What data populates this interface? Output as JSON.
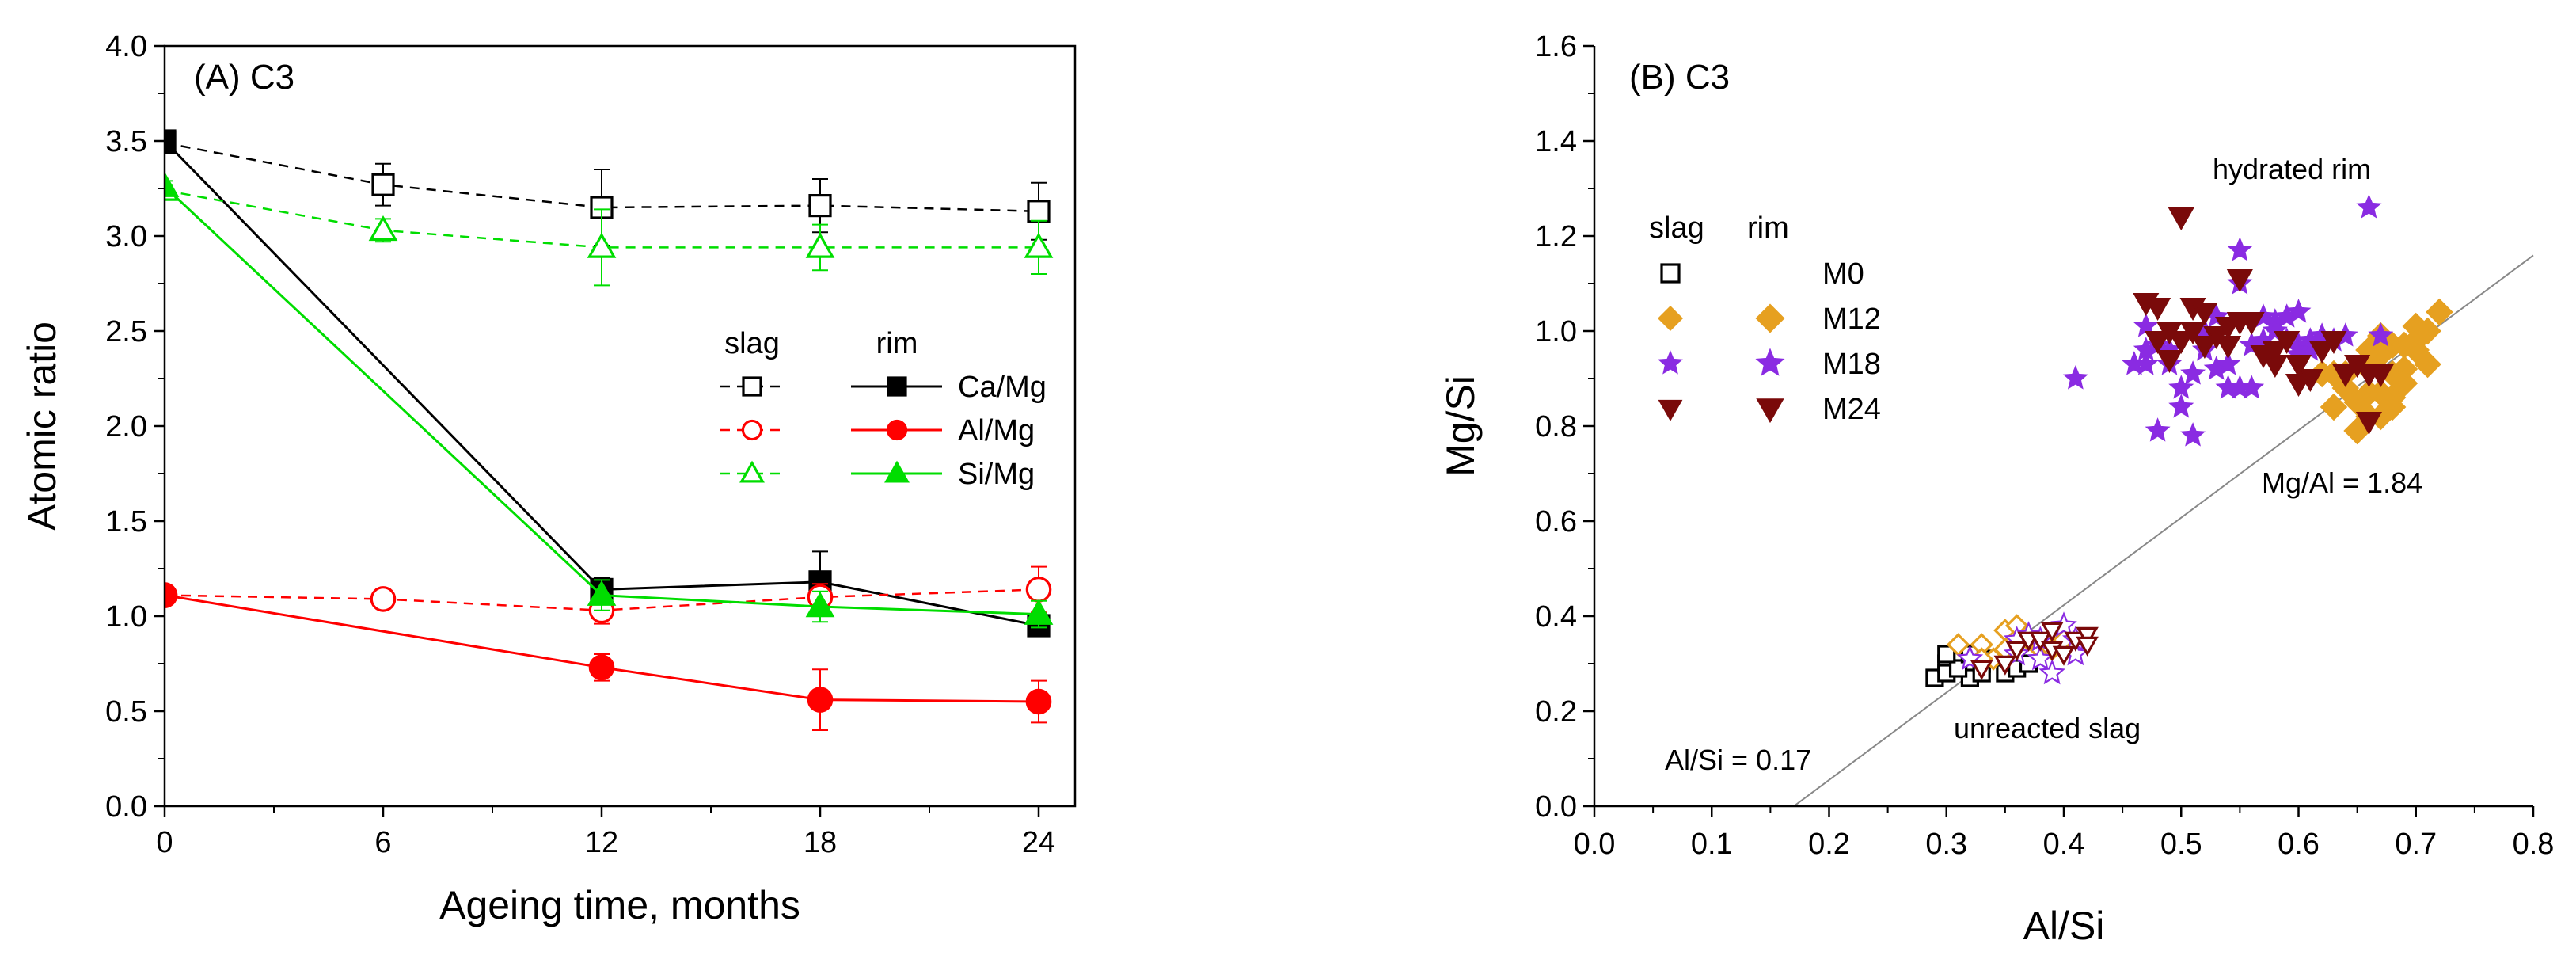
{
  "colors": {
    "ca": "#000000",
    "al": "#ff0000",
    "si": "#00dd00",
    "m0": "#000000",
    "m12": "#e6a020",
    "m18": "#8a2be2",
    "m24": "#7a0a0a",
    "gridline": "#888888"
  },
  "chart_data": [
    {
      "type": "line",
      "panel": "(A) C3",
      "xlabel": "Ageing time, months",
      "ylabel": "Atomic ratio",
      "xlim": [
        0,
        25
      ],
      "ylim": [
        0,
        4.0
      ],
      "xticks": [
        0,
        6,
        12,
        18,
        24
      ],
      "yticks": [
        "0.0",
        "0.5",
        "1.0",
        "1.5",
        "2.0",
        "2.5",
        "3.0",
        "3.5",
        "4.0"
      ],
      "legend": {
        "position": "right",
        "col_slag": "slag",
        "col_rim": "rim"
      },
      "series": [
        {
          "name": "Ca/Mg",
          "group": "slag",
          "style": "dashed",
          "marker": "open-square",
          "color_key": "ca",
          "points": [
            {
              "x": 0,
              "y": 3.49,
              "err": 0.03
            },
            {
              "x": 6,
              "y": 3.27,
              "err": 0.11
            },
            {
              "x": 12,
              "y": 3.15,
              "err": 0.2
            },
            {
              "x": 18,
              "y": 3.16,
              "err": 0.14
            },
            {
              "x": 24,
              "y": 3.13,
              "err": 0.15
            }
          ]
        },
        {
          "name": "Ca/Mg",
          "group": "rim",
          "style": "solid",
          "marker": "filled-square",
          "color_key": "ca",
          "points": [
            {
              "x": 0,
              "y": 3.5,
              "err": 0.03
            },
            {
              "x": 12,
              "y": 1.14,
              "err": 0.06
            },
            {
              "x": 18,
              "y": 1.18,
              "err": 0.16
            },
            {
              "x": 24,
              "y": 0.95,
              "err": 0.04
            }
          ]
        },
        {
          "name": "Al/Mg",
          "group": "slag",
          "style": "dashed",
          "marker": "open-circle",
          "color_key": "al",
          "points": [
            {
              "x": 0,
              "y": 1.11,
              "err": 0.02
            },
            {
              "x": 6,
              "y": 1.09,
              "err": 0.05
            },
            {
              "x": 12,
              "y": 1.03,
              "err": 0.07
            },
            {
              "x": 18,
              "y": 1.1,
              "err": 0.07
            },
            {
              "x": 24,
              "y": 1.14,
              "err": 0.12
            }
          ]
        },
        {
          "name": "Al/Mg",
          "group": "rim",
          "style": "solid",
          "marker": "filled-circle",
          "color_key": "al",
          "points": [
            {
              "x": 0,
              "y": 1.11,
              "err": 0.02
            },
            {
              "x": 12,
              "y": 0.73,
              "err": 0.07
            },
            {
              "x": 18,
              "y": 0.56,
              "err": 0.16
            },
            {
              "x": 24,
              "y": 0.55,
              "err": 0.11
            }
          ]
        },
        {
          "name": "Si/Mg",
          "group": "slag",
          "style": "dashed",
          "marker": "open-triangle",
          "color_key": "si",
          "points": [
            {
              "x": 0,
              "y": 3.24,
              "err": 0.03
            },
            {
              "x": 6,
              "y": 3.03,
              "err": 0.06
            },
            {
              "x": 12,
              "y": 2.94,
              "err": 0.2
            },
            {
              "x": 18,
              "y": 2.94,
              "err": 0.12
            },
            {
              "x": 24,
              "y": 2.94,
              "err": 0.14
            }
          ]
        },
        {
          "name": "Si/Mg",
          "group": "rim",
          "style": "solid",
          "marker": "filled-triangle",
          "color_key": "si",
          "points": [
            {
              "x": 0,
              "y": 3.26,
              "err": 0.03
            },
            {
              "x": 12,
              "y": 1.11,
              "err": 0.08
            },
            {
              "x": 18,
              "y": 1.05,
              "err": 0.08
            },
            {
              "x": 24,
              "y": 1.01,
              "err": 0.07
            }
          ]
        }
      ]
    },
    {
      "type": "scatter",
      "panel": "(B) C3",
      "xlabel": "Al/Si",
      "ylabel": "Mg/Si",
      "xlim": [
        0,
        0.8
      ],
      "ylim": [
        0,
        1.6
      ],
      "xticks": [
        "0.0",
        "0.1",
        "0.2",
        "0.3",
        "0.4",
        "0.5",
        "0.6",
        "0.7",
        "0.8"
      ],
      "yticks": [
        "0.0",
        "0.2",
        "0.4",
        "0.6",
        "0.8",
        "1.0",
        "1.2",
        "1.4",
        "1.6"
      ],
      "legend": {
        "position": "top-left",
        "col_slag": "slag",
        "col_rim": "rim",
        "labels": [
          "M0",
          "M12",
          "M18",
          "M24"
        ]
      },
      "annotations": {
        "hydrated": "hydrated rim",
        "unreacted": "unreacted slag",
        "mgal": "Mg/Al = 1.84",
        "alsi": "Al/Si = 0.17"
      },
      "reference_line": {
        "x0": 0.17,
        "slope": 1.84
      },
      "series": [
        {
          "name": "M0",
          "group": "slag",
          "marker": "open-square",
          "color_key": "m0",
          "points": [
            [
              0.29,
              0.27
            ],
            [
              0.3,
              0.3
            ],
            [
              0.31,
              0.31
            ],
            [
              0.3,
              0.28
            ],
            [
              0.32,
              0.27
            ],
            [
              0.33,
              0.3
            ],
            [
              0.34,
              0.31
            ],
            [
              0.31,
              0.29
            ],
            [
              0.35,
              0.28
            ],
            [
              0.36,
              0.29
            ],
            [
              0.32,
              0.32
            ],
            [
              0.37,
              0.3
            ],
            [
              0.3,
              0.32
            ],
            [
              0.33,
              0.28
            ]
          ]
        },
        {
          "name": "M12",
          "group": "slag",
          "marker": "open-diamond",
          "color_key": "m12",
          "points": [
            [
              0.31,
              0.34
            ],
            [
              0.33,
              0.34
            ],
            [
              0.35,
              0.37
            ],
            [
              0.36,
              0.38
            ],
            [
              0.34,
              0.31
            ],
            [
              0.37,
              0.35
            ],
            [
              0.38,
              0.33
            ],
            [
              0.39,
              0.33
            ],
            [
              0.35,
              0.33
            ],
            [
              0.33,
              0.31
            ],
            [
              0.4,
              0.35
            ]
          ]
        },
        {
          "name": "M18",
          "group": "slag",
          "marker": "open-star",
          "color_key": "m18",
          "points": [
            [
              0.32,
              0.31
            ],
            [
              0.36,
              0.32
            ],
            [
              0.37,
              0.36
            ],
            [
              0.38,
              0.31
            ],
            [
              0.39,
              0.28
            ],
            [
              0.4,
              0.38
            ],
            [
              0.41,
              0.35
            ],
            [
              0.41,
              0.32
            ],
            [
              0.36,
              0.35
            ],
            [
              0.38,
              0.35
            ]
          ]
        },
        {
          "name": "M24",
          "group": "slag",
          "marker": "open-triangle-down",
          "color_key": "m24",
          "points": [
            [
              0.33,
              0.29
            ],
            [
              0.35,
              0.3
            ],
            [
              0.36,
              0.33
            ],
            [
              0.37,
              0.35
            ],
            [
              0.38,
              0.35
            ],
            [
              0.39,
              0.33
            ],
            [
              0.4,
              0.32
            ],
            [
              0.41,
              0.35
            ],
            [
              0.42,
              0.36
            ],
            [
              0.42,
              0.34
            ],
            [
              0.39,
              0.37
            ]
          ]
        },
        {
          "name": "M12",
          "group": "rim",
          "marker": "filled-diamond",
          "color_key": "m12",
          "points": [
            [
              0.62,
              0.91
            ],
            [
              0.63,
              0.84
            ],
            [
              0.64,
              0.88
            ],
            [
              0.65,
              0.79
            ],
            [
              0.66,
              0.92
            ],
            [
              0.67,
              0.95
            ],
            [
              0.68,
              0.97
            ],
            [
              0.69,
              0.92
            ],
            [
              0.7,
              0.98
            ],
            [
              0.71,
              1.0
            ],
            [
              0.72,
              1.04
            ],
            [
              0.67,
              0.87
            ],
            [
              0.66,
              0.82
            ],
            [
              0.64,
              0.91
            ],
            [
              0.68,
              0.86
            ],
            [
              0.69,
              0.97
            ],
            [
              0.7,
              0.96
            ],
            [
              0.71,
              0.93
            ],
            [
              0.65,
              0.85
            ],
            [
              0.67,
              0.99
            ],
            [
              0.68,
              0.91
            ],
            [
              0.63,
              0.91
            ],
            [
              0.67,
              0.82
            ],
            [
              0.66,
              0.96
            ],
            [
              0.69,
              0.89
            ],
            [
              0.7,
              1.01
            ],
            [
              0.66,
              0.87
            ],
            [
              0.68,
              0.84
            ]
          ]
        },
        {
          "name": "M18",
          "group": "rim",
          "marker": "filled-star",
          "color_key": "m18",
          "points": [
            [
              0.41,
              0.9
            ],
            [
              0.46,
              0.93
            ],
            [
              0.47,
              0.93
            ],
            [
              0.47,
              1.01
            ],
            [
              0.48,
              0.79
            ],
            [
              0.49,
              0.96
            ],
            [
              0.5,
              0.88
            ],
            [
              0.5,
              0.84
            ],
            [
              0.51,
              0.78
            ],
            [
              0.51,
              0.91
            ],
            [
              0.52,
              0.96
            ],
            [
              0.53,
              1.03
            ],
            [
              0.54,
              0.88
            ],
            [
              0.55,
              1.17
            ],
            [
              0.55,
              1.1
            ],
            [
              0.56,
              0.97
            ],
            [
              0.57,
              1.03
            ],
            [
              0.58,
              1.02
            ],
            [
              0.59,
              1.03
            ],
            [
              0.6,
              1.04
            ],
            [
              0.61,
              0.98
            ],
            [
              0.62,
              0.99
            ],
            [
              0.49,
              0.93
            ],
            [
              0.48,
              0.97
            ],
            [
              0.55,
              0.88
            ],
            [
              0.56,
              0.88
            ],
            [
              0.57,
              0.98
            ],
            [
              0.6,
              0.97
            ],
            [
              0.63,
              0.98
            ],
            [
              0.64,
              0.99
            ],
            [
              0.66,
              1.26
            ],
            [
              0.67,
              0.99
            ],
            [
              0.53,
              0.92
            ],
            [
              0.58,
              1.0
            ],
            [
              0.6,
              0.95
            ],
            [
              0.47,
              0.96
            ],
            [
              0.52,
              1.0
            ],
            [
              0.54,
              0.93
            ],
            [
              0.59,
              0.98
            ],
            [
              0.61,
              0.96
            ]
          ]
        },
        {
          "name": "M24",
          "group": "rim",
          "marker": "filled-triangle-down",
          "color_key": "m24",
          "points": [
            [
              0.47,
              1.06
            ],
            [
              0.48,
              1.05
            ],
            [
              0.49,
              1.0
            ],
            [
              0.49,
              0.94
            ],
            [
              0.5,
              1.24
            ],
            [
              0.51,
              1.05
            ],
            [
              0.51,
              1.0
            ],
            [
              0.52,
              1.04
            ],
            [
              0.53,
              0.99
            ],
            [
              0.54,
              1.01
            ],
            [
              0.55,
              1.11
            ],
            [
              0.55,
              1.02
            ],
            [
              0.56,
              1.02
            ],
            [
              0.57,
              0.95
            ],
            [
              0.58,
              0.93
            ],
            [
              0.59,
              0.98
            ],
            [
              0.6,
              0.93
            ],
            [
              0.61,
              0.9
            ],
            [
              0.62,
              0.96
            ],
            [
              0.63,
              0.98
            ],
            [
              0.64,
              0.91
            ],
            [
              0.65,
              0.93
            ],
            [
              0.66,
              0.81
            ],
            [
              0.66,
              0.91
            ],
            [
              0.67,
              0.91
            ],
            [
              0.5,
              0.98
            ],
            [
              0.52,
              0.97
            ],
            [
              0.54,
              0.97
            ],
            [
              0.58,
              0.96
            ],
            [
              0.6,
              0.89
            ],
            [
              0.48,
              0.98
            ]
          ]
        }
      ]
    }
  ]
}
